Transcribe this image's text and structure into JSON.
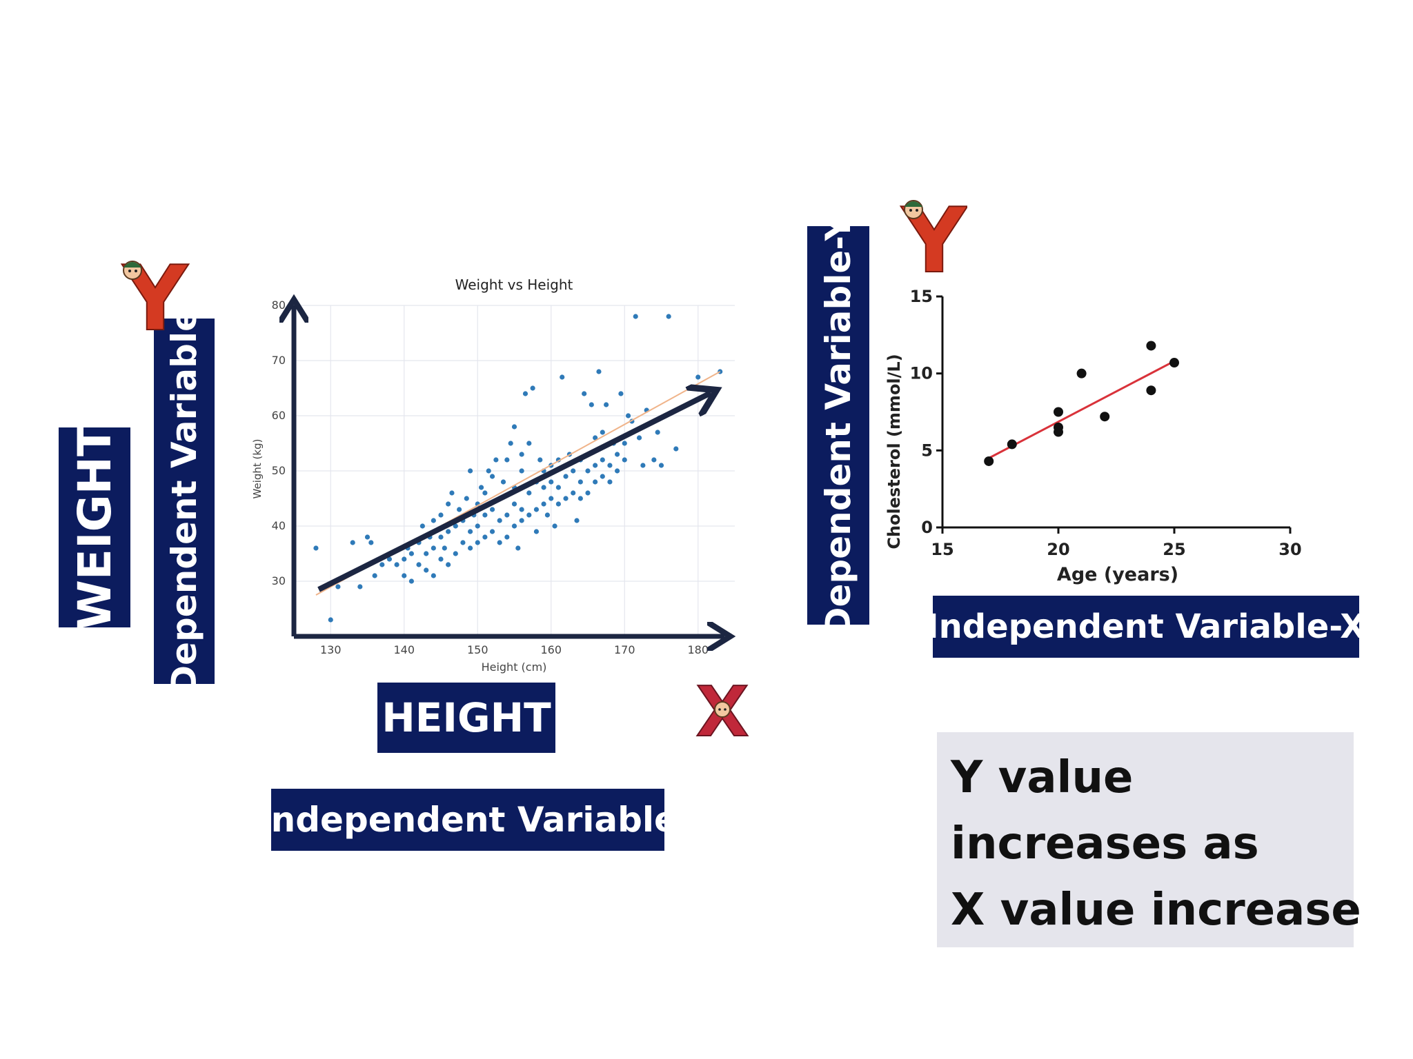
{
  "labels": {
    "weight": "WEIGHT",
    "dependent_variable": "Dependent Variable",
    "height": "HEIGHT",
    "independent_variable": "Independent Variable",
    "dependent_variable_y": "Dependent Variable-Y",
    "independent_variable_x": "Independent Variable-X",
    "y_letter": "Y",
    "x_letter": "X"
  },
  "summary": {
    "line1": "Y value",
    "line2": "increases as",
    "line3": "X value increase"
  },
  "colors": {
    "navy": "#0c1c5e",
    "scatter_point": "#2f7ab8",
    "trend_red": "#d9323a",
    "arrow": "#1c2642",
    "letter_red": "#d43a22"
  },
  "chart_data": [
    {
      "type": "scatter",
      "title": "Weight vs Height",
      "xlabel": "Height (cm)",
      "ylabel": "Weight (kg)",
      "xlim": [
        125,
        185
      ],
      "ylim": [
        20,
        80
      ],
      "xticks": [
        130,
        140,
        150,
        160,
        170,
        180
      ],
      "yticks": [
        30,
        40,
        50,
        60,
        70,
        80
      ],
      "grid": true,
      "trend_line": [
        [
          128,
          27.5
        ],
        [
          183,
          68
        ]
      ],
      "points": [
        [
          128,
          36
        ],
        [
          130,
          23
        ],
        [
          131,
          29
        ],
        [
          133,
          37
        ],
        [
          134,
          29
        ],
        [
          135,
          38
        ],
        [
          135.5,
          37
        ],
        [
          136,
          31
        ],
        [
          137,
          33
        ],
        [
          138,
          34
        ],
        [
          139,
          33
        ],
        [
          140,
          31
        ],
        [
          140,
          34
        ],
        [
          140.5,
          36
        ],
        [
          141,
          30
        ],
        [
          141,
          35
        ],
        [
          142,
          33
        ],
        [
          142,
          37
        ],
        [
          142.5,
          40
        ],
        [
          143,
          32
        ],
        [
          143,
          35
        ],
        [
          143.5,
          38
        ],
        [
          144,
          31
        ],
        [
          144,
          36
        ],
        [
          144,
          41
        ],
        [
          145,
          34
        ],
        [
          145,
          38
        ],
        [
          145,
          42
        ],
        [
          145.5,
          36
        ],
        [
          146,
          33
        ],
        [
          146,
          39
        ],
        [
          146,
          44
        ],
        [
          146.5,
          46
        ],
        [
          147,
          35
        ],
        [
          147,
          40
        ],
        [
          147.5,
          43
        ],
        [
          148,
          37
        ],
        [
          148,
          41
        ],
        [
          148.5,
          45
        ],
        [
          149,
          36
        ],
        [
          149,
          39
        ],
        [
          149,
          50
        ],
        [
          149.5,
          42
        ],
        [
          150,
          37
        ],
        [
          150,
          40
        ],
        [
          150,
          44
        ],
        [
          150.5,
          47
        ],
        [
          151,
          38
        ],
        [
          151,
          42
        ],
        [
          151,
          46
        ],
        [
          151.5,
          50
        ],
        [
          152,
          39
        ],
        [
          152,
          43
        ],
        [
          152,
          49
        ],
        [
          152.5,
          52
        ],
        [
          153,
          37
        ],
        [
          153,
          41
        ],
        [
          153,
          45
        ],
        [
          153.5,
          48
        ],
        [
          154,
          38
        ],
        [
          154,
          42
        ],
        [
          154,
          52
        ],
        [
          154.5,
          55
        ],
        [
          155,
          40
        ],
        [
          155,
          44
        ],
        [
          155,
          47
        ],
        [
          155,
          58
        ],
        [
          155.5,
          36
        ],
        [
          156,
          41
        ],
        [
          156,
          43
        ],
        [
          156,
          50
        ],
        [
          156,
          53
        ],
        [
          156.5,
          64
        ],
        [
          157,
          42
        ],
        [
          157,
          46
        ],
        [
          157,
          55
        ],
        [
          157.5,
          65
        ],
        [
          158,
          39
        ],
        [
          158,
          43
        ],
        [
          158,
          48
        ],
        [
          158.5,
          52
        ],
        [
          159,
          44
        ],
        [
          159,
          47
        ],
        [
          159,
          50
        ],
        [
          159.5,
          42
        ],
        [
          160,
          45
        ],
        [
          160,
          48
        ],
        [
          160,
          51
        ],
        [
          160.5,
          40
        ],
        [
          161,
          44
        ],
        [
          161,
          47
        ],
        [
          161,
          52
        ],
        [
          161.5,
          67
        ],
        [
          162,
          45
        ],
        [
          162,
          49
        ],
        [
          162.5,
          53
        ],
        [
          163,
          46
        ],
        [
          163,
          50
        ],
        [
          163.5,
          41
        ],
        [
          164,
          45
        ],
        [
          164,
          48
        ],
        [
          164,
          52
        ],
        [
          164.5,
          64
        ],
        [
          165,
          46
        ],
        [
          165,
          50
        ],
        [
          165,
          53
        ],
        [
          165.5,
          62
        ],
        [
          166,
          48
        ],
        [
          166,
          51
        ],
        [
          166,
          56
        ],
        [
          166.5,
          68
        ],
        [
          167,
          49
        ],
        [
          167,
          52
        ],
        [
          167,
          57
        ],
        [
          167.5,
          62
        ],
        [
          168,
          48
        ],
        [
          168,
          51
        ],
        [
          168.5,
          55
        ],
        [
          169,
          50
        ],
        [
          169,
          53
        ],
        [
          169.5,
          64
        ],
        [
          170,
          52
        ],
        [
          170,
          55
        ],
        [
          170.5,
          60
        ],
        [
          171,
          59
        ],
        [
          171.5,
          78
        ],
        [
          172,
          56
        ],
        [
          172.5,
          51
        ],
        [
          173,
          61
        ],
        [
          174,
          52
        ],
        [
          174.5,
          57
        ],
        [
          175,
          51
        ],
        [
          176,
          78
        ],
        [
          177,
          54
        ],
        [
          180,
          67
        ],
        [
          183,
          68
        ]
      ]
    },
    {
      "type": "scatter",
      "xlabel": "Age (years)",
      "ylabel": "Cholesterol (mmol/L)",
      "xlim": [
        15,
        30
      ],
      "ylim": [
        0,
        15
      ],
      "xticks": [
        15,
        20,
        25,
        30
      ],
      "yticks": [
        0,
        5,
        10,
        15
      ],
      "grid": false,
      "trend_line": [
        [
          17,
          4.5
        ],
        [
          25,
          10.8
        ]
      ],
      "points": [
        [
          17,
          4.3
        ],
        [
          18,
          5.4
        ],
        [
          20,
          7.5
        ],
        [
          20,
          6.5
        ],
        [
          20,
          6.2
        ],
        [
          21,
          10
        ],
        [
          22,
          7.2
        ],
        [
          24,
          11.8
        ],
        [
          24,
          8.9
        ],
        [
          25,
          10.7
        ]
      ]
    }
  ]
}
